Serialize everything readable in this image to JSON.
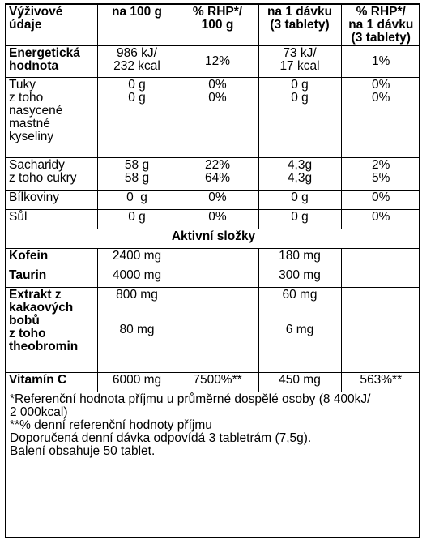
{
  "header": {
    "col1": [
      "Výživové",
      "údaje"
    ],
    "col2": "na 100 g",
    "col3": [
      "% RHP*/",
      "100 g"
    ],
    "col4": [
      "na 1 dávku",
      "(3 tablety)"
    ],
    "col5": [
      "% RHP*/",
      "na 1 dávku",
      "(3 tablety)"
    ]
  },
  "rows": {
    "energy": {
      "label": [
        "Energetická",
        "hodnota"
      ],
      "per100": [
        "986 kJ/",
        "232 kcal"
      ],
      "rhp100": "12%",
      "perDose": [
        "73 kJ/",
        "17 kcal"
      ],
      "rhpDose": "1%"
    },
    "fat": {
      "label": [
        "Tuky",
        "z toho",
        "nasycené",
        "mastné",
        "kyseliny"
      ],
      "per100": [
        "0 g",
        "0 g"
      ],
      "rhp100": [
        "0%",
        "0%"
      ],
      "perDose": [
        "0 g",
        "0 g"
      ],
      "rhpDose": [
        "0%",
        "0%"
      ]
    },
    "carbs": {
      "label": [
        "Sacharidy",
        "z toho cukry"
      ],
      "per100": [
        "58 g",
        "58 g"
      ],
      "rhp100": [
        "22%",
        "64%"
      ],
      "perDose": [
        "4,3g",
        "4,3g"
      ],
      "rhpDose": [
        "2%",
        "5%"
      ]
    },
    "protein": {
      "label": "Bílkoviny",
      "per100": "0  g",
      "rhp100": "0%",
      "perDose": "0 g",
      "rhpDose": "0%"
    },
    "salt": {
      "label": "Sůl",
      "per100": "0 g",
      "rhp100": "0%",
      "perDose": "0 g",
      "rhpDose": "0%"
    }
  },
  "active": {
    "title": "Aktivní složky",
    "caffeine": {
      "label": "Kofein",
      "per100": "2400 mg",
      "perDose": "180 mg"
    },
    "taurine": {
      "label": "Taurin",
      "per100": "4000 mg",
      "perDose": "300 mg"
    },
    "cocoa": {
      "label": [
        "Extrakt z",
        "kakaových",
        "bobů",
        "z toho",
        "theobromin"
      ],
      "per100": [
        "800 mg",
        "80 mg"
      ],
      "perDose": [
        "60 mg",
        "6 mg"
      ]
    },
    "vitc": {
      "label": "Vitamín C",
      "per100": "6000 mg",
      "rhp100": "7500%**",
      "perDose": "450 mg",
      "rhpDose": "563%**"
    }
  },
  "notes": [
    "*Referenční hodnota příjmu u průměrné dospělé osoby (8 400kJ/",
    "2 000kcal)",
    "**% denní referenční hodnoty příjmu",
    "Doporučená denní dávka odpovídá 3 tabletrám (7,5g).",
    "Balení obsahuje 50 tablet."
  ]
}
